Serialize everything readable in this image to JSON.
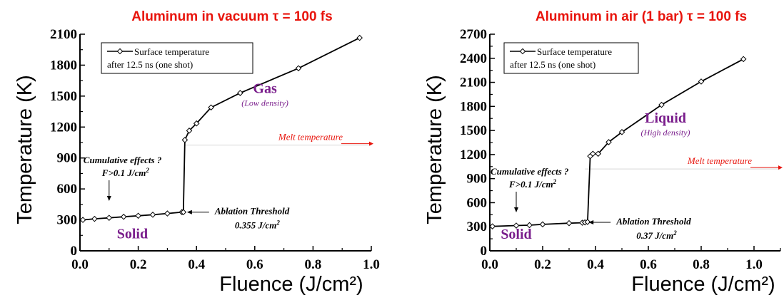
{
  "chart_data": [
    {
      "type": "line",
      "title": "Aluminum in vacuum τ = 100 fs",
      "xlabel": "Fluence (J/cm²)",
      "ylabel": "Temperature (K)",
      "xlim": [
        0,
        1.0
      ],
      "ylim": [
        0,
        2100
      ],
      "xticks": [
        "0.0",
        "0.2",
        "0.4",
        "0.6",
        "0.8",
        "1.0"
      ],
      "yticks": [
        "0",
        "300",
        "600",
        "900",
        "1200",
        "1500",
        "1800",
        "2100"
      ],
      "legend": {
        "line1": "Surface temperature",
        "line2": "after 12.5 ns (one shot)",
        "position": "top-left"
      },
      "series": [
        {
          "name": "Surface temperature after 12.5 ns (one shot)",
          "x": [
            0.01,
            0.05,
            0.1,
            0.15,
            0.2,
            0.25,
            0.3,
            0.35,
            0.355,
            0.36,
            0.375,
            0.4,
            0.45,
            0.55,
            0.75,
            0.96
          ],
          "y": [
            300,
            310,
            320,
            330,
            340,
            350,
            362,
            375,
            375,
            1075,
            1165,
            1235,
            1390,
            1530,
            1770,
            2065
          ]
        }
      ],
      "melt_temperature": 1025,
      "melt_label": "Melt temperature",
      "phase_labels": [
        {
          "text": "Gas",
          "x": 0.635,
          "y": 1530,
          "sub": "(Low density)"
        },
        {
          "text": "Solid",
          "x": 0.18,
          "y": 120
        }
      ],
      "notes": {
        "cumulative_line1": "Cumulative effects ?",
        "cumulative_line2": "F>0.1 J/cm",
        "cumulative_sup": "2",
        "cumulative_x": 0.1,
        "ablation_line1": "Ablation Threshold",
        "ablation_line2": "0.355 J/cm",
        "ablation_sup": "2",
        "ablation_x": 0.355,
        "ablation_y": 375
      }
    },
    {
      "type": "line",
      "title": "Aluminum in air (1 bar) τ = 100 fs",
      "xlabel": "Fluence (J/cm²)",
      "ylabel": "Temperature (K)",
      "xlim": [
        0,
        1.1
      ],
      "ylim": [
        0,
        2700
      ],
      "xticks": [
        "0.0",
        "0.2",
        "0.4",
        "0.6",
        "0.8",
        "1.0"
      ],
      "yticks": [
        "0",
        "300",
        "600",
        "900",
        "1200",
        "1500",
        "1800",
        "2100",
        "2400",
        "2700"
      ],
      "legend": {
        "line1": "Surface temperature",
        "line2": "after 12.5 ns (one shot)",
        "position": "top-left"
      },
      "series": [
        {
          "name": "Surface temperature after 12.5 ns (one shot)",
          "x": [
            0.01,
            0.1,
            0.15,
            0.2,
            0.3,
            0.35,
            0.36,
            0.37,
            0.38,
            0.39,
            0.41,
            0.45,
            0.5,
            0.65,
            0.8,
            0.96
          ],
          "y": [
            305,
            315,
            320,
            330,
            345,
            350,
            355,
            360,
            1180,
            1210,
            1210,
            1355,
            1480,
            1820,
            2110,
            2390
          ]
        }
      ],
      "melt_temperature": 1020,
      "melt_label": "Melt temperature",
      "phase_labels": [
        {
          "text": "Liquid",
          "x": 0.665,
          "y": 1600,
          "sub": "(High density)"
        },
        {
          "text": "Solid",
          "x": 0.1,
          "y": 150
        }
      ],
      "notes": {
        "cumulative_line1": "Cumulative effects ?",
        "cumulative_line2": "F>0.1 J/cm",
        "cumulative_sup": "2",
        "cumulative_x": 0.1,
        "ablation_line1": "Ablation Threshold",
        "ablation_line2": "0.37 J/cm",
        "ablation_sup": "2",
        "ablation_x": 0.36,
        "ablation_y": 355
      }
    }
  ]
}
